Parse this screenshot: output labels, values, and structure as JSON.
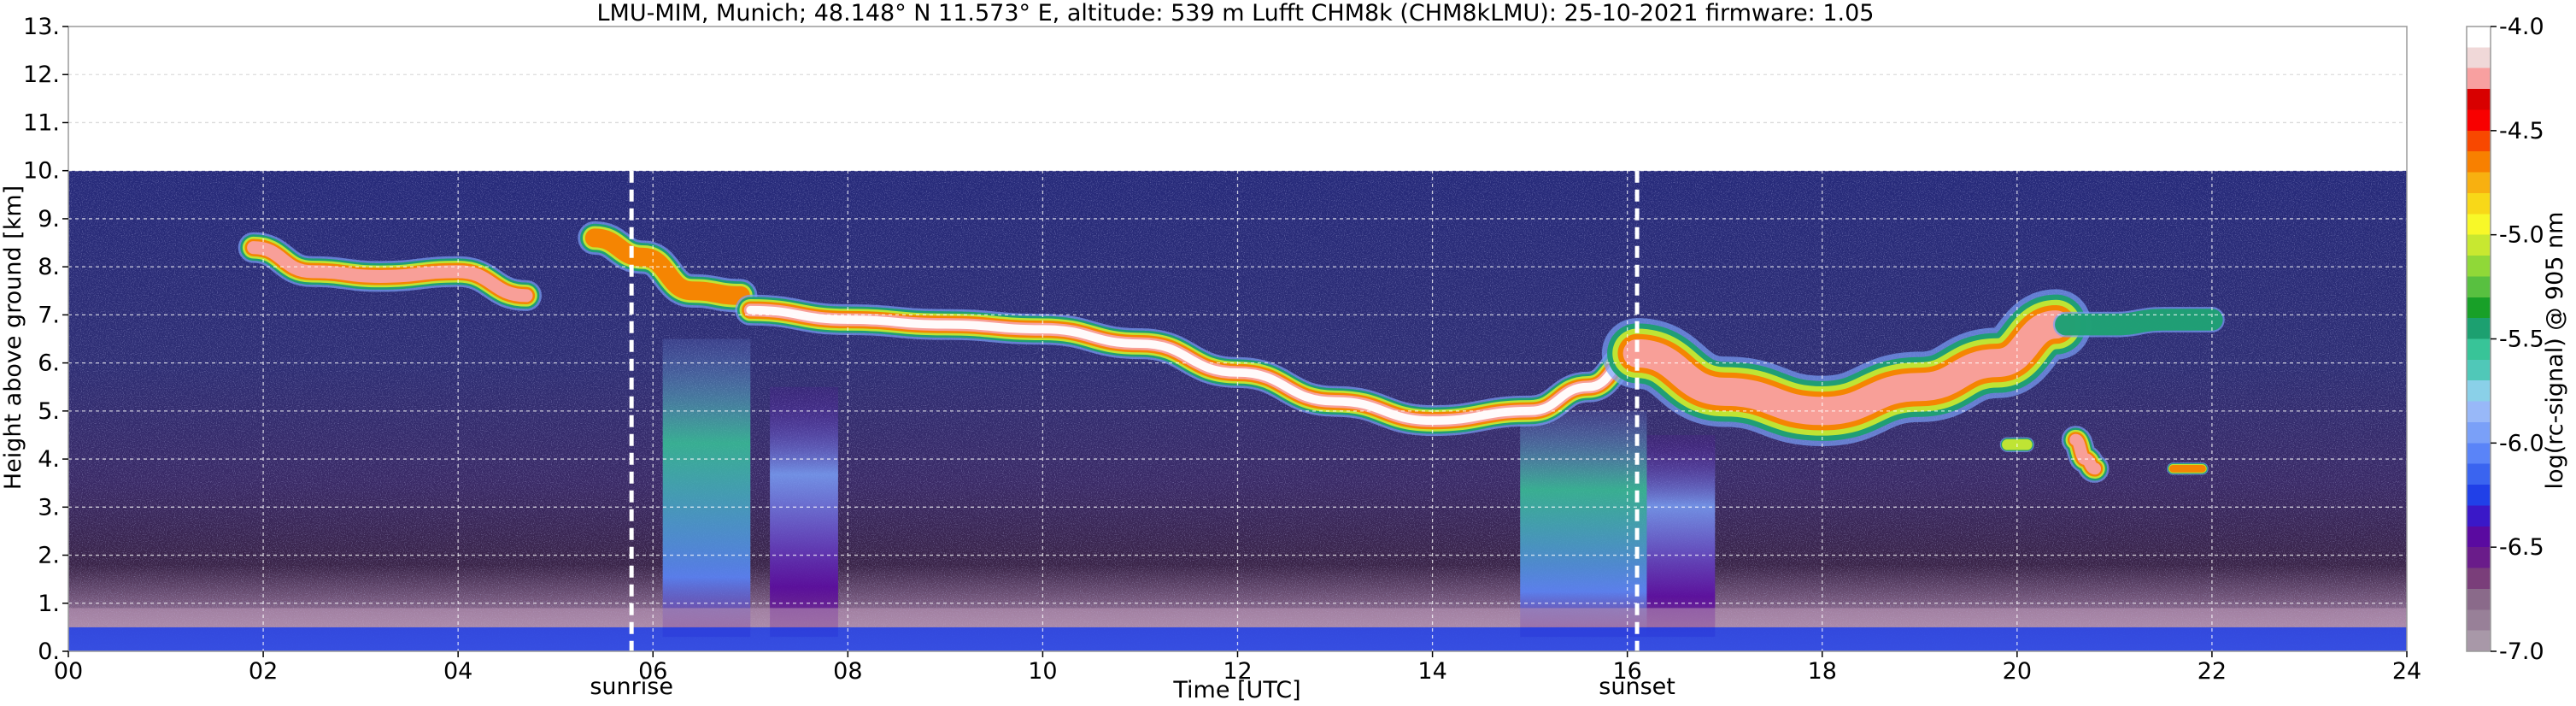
{
  "chart_data": {
    "type": "heatmap",
    "title": "LMU-MIM, Munich; 48.148° N 11.573° E, altitude: 539 m    Lufft CHM8k (CHM8kLMU): 25-10-2021    firmware: 1.05",
    "xlabel": "Time [UTC]",
    "ylabel": "Height above ground [km]",
    "xlim": [
      0,
      24
    ],
    "ylim": [
      0,
      13
    ],
    "x_ticks": [
      0,
      2,
      4,
      6,
      8,
      10,
      12,
      14,
      16,
      18,
      20,
      22,
      24
    ],
    "x_tick_labels": [
      "00",
      "02",
      "04",
      "06",
      "08",
      "10",
      "12",
      "14",
      "16",
      "18",
      "20",
      "22",
      "24"
    ],
    "y_ticks": [
      0,
      1,
      2,
      3,
      4,
      5,
      6,
      7,
      8,
      9,
      10,
      11,
      12,
      13
    ],
    "y_tick_labels": [
      "0.",
      "1.",
      "2.",
      "3.",
      "4.",
      "5.",
      "6.",
      "7.",
      "8.",
      "9.",
      "10.",
      "11.",
      "12.",
      "13."
    ],
    "grid": true,
    "data_top_height": 10,
    "colorbar": {
      "label": "log(rc-signal) @ 905 nm",
      "range": [
        -7.0,
        -4.0
      ],
      "ticks": [
        -7.0,
        -6.5,
        -6.0,
        -5.5,
        -5.0,
        -4.5,
        -4.0
      ],
      "tick_labels": [
        "-7.0",
        "-6.5",
        "-6.0",
        "-5.5",
        "-5.0",
        "-4.5",
        "-4.0"
      ],
      "colors": [
        "#a898a8",
        "#988098",
        "#8a6a8a",
        "#7a3e7a",
        "#6a1c8a",
        "#5a0aa0",
        "#3a18c8",
        "#2040e8",
        "#3a64f0",
        "#5a84f8",
        "#7aa0f8",
        "#98b8f8",
        "#8ad0e8",
        "#50c8b8",
        "#38c498",
        "#1ca070",
        "#18a028",
        "#58c040",
        "#90d838",
        "#c8e830",
        "#f8f828",
        "#f8d818",
        "#f8b010",
        "#f88000",
        "#f84800",
        "#f80000",
        "#d80000",
        "#f8a0a0",
        "#f0d8d8",
        "#ffffff"
      ]
    },
    "events": [
      {
        "label": "sunrise",
        "time": 5.78
      },
      {
        "label": "sunset",
        "time": 16.1
      }
    ],
    "cloud_layers": [
      {
        "x": [
          1.9,
          2.5,
          3.2,
          4.0,
          4.7
        ],
        "y": [
          8.4,
          7.9,
          7.8,
          7.9,
          7.4
        ],
        "thickness": 0.55,
        "peak": -4.3
      },
      {
        "x": [
          5.4,
          5.9,
          6.4,
          6.9
        ],
        "y": [
          8.6,
          8.2,
          7.5,
          7.4
        ],
        "thickness": 0.6,
        "peak": -4.6
      },
      {
        "x": [
          7.0,
          8.0,
          9.0,
          10.0,
          11.0,
          12.0,
          13.0,
          14.0,
          15.0,
          15.6,
          16.1
        ],
        "y": [
          7.1,
          6.9,
          6.8,
          6.7,
          6.4,
          5.8,
          5.2,
          4.8,
          5.0,
          5.5,
          6.2
        ],
        "thickness": 0.55,
        "peak": -4.1
      },
      {
        "x": [
          16.1,
          17.0,
          18.0,
          19.0,
          19.8,
          20.4
        ],
        "y": [
          6.2,
          5.4,
          5.0,
          5.5,
          6.0,
          6.8
        ],
        "thickness": 1.3,
        "peak": -4.3
      },
      {
        "x": [
          20.5,
          21.0,
          21.5,
          22.0
        ],
        "y": [
          6.8,
          6.8,
          6.9,
          6.9
        ],
        "thickness": 0.45,
        "peak": -5.2
      },
      {
        "x": [
          20.6,
          20.7,
          20.8
        ],
        "y": [
          4.4,
          4.0,
          3.8
        ],
        "thickness": 0.5,
        "peak": -4.2
      },
      {
        "x": [
          19.9,
          20.1
        ],
        "y": [
          4.3,
          4.3
        ],
        "thickness": 0.25,
        "peak": -5.0
      },
      {
        "x": [
          21.6,
          21.9
        ],
        "y": [
          3.8,
          3.8
        ],
        "thickness": 0.2,
        "peak": -4.6
      }
    ],
    "precip_fallstreaks": [
      {
        "x": [
          6.1,
          7.0
        ],
        "top": 6.5,
        "peak": -5.6
      },
      {
        "x": [
          7.2,
          7.9
        ],
        "top": 5.5,
        "peak": -6.0
      },
      {
        "x": [
          14.9,
          16.2
        ],
        "top": 5.0,
        "peak": -5.6
      },
      {
        "x": [
          16.2,
          16.9
        ],
        "top": 4.5,
        "peak": -6.0
      }
    ],
    "boundary_layer": {
      "top_km": 0.5,
      "peak": -6.3
    }
  }
}
